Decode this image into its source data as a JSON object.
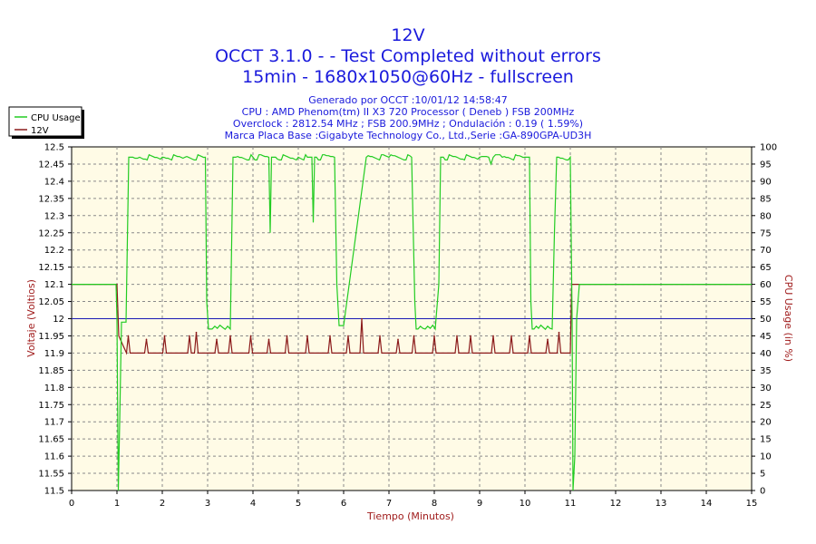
{
  "chart_data": {
    "type": "line",
    "title": "12V",
    "subtitle_1": "OCCT 3.1.0 -  - Test Completed without errors",
    "subtitle_2": "15min - 1680x1050@60Hz - fullscreen",
    "info_lines": [
      "Generado por OCCT :10/01/12 14:58:47",
      "CPU : AMD Phenom(tm) II X3 720 Processor ( Deneb ) FSB 200MHz",
      "Overclock : 2812.54 MHz ; FSB 200.9MHz ; Ondulación : 0.19 ( 1.59%)",
      "Marca Placa Base :Gigabyte Technology Co., Ltd.,Serie :GA-890GPA-UD3H"
    ],
    "xlabel": "Tiempo (Minutos)",
    "ylabel_left": "Voltaje (Voltios)",
    "ylabel_right": "CPU Usage (in %)",
    "xlim": [
      0,
      15
    ],
    "ylim_left": [
      11.5,
      12.5
    ],
    "ylim_right": [
      0,
      100
    ],
    "x_ticks": [
      "0",
      "1",
      "2",
      "3",
      "4",
      "5",
      "6",
      "7",
      "8",
      "9",
      "10",
      "11",
      "12",
      "13",
      "14",
      "15"
    ],
    "y_left_ticks": [
      "11.5",
      "11.55",
      "11.6",
      "11.65",
      "11.7",
      "11.75",
      "11.8",
      "11.85",
      "11.9",
      "11.95",
      "12",
      "12.05",
      "12.1",
      "12.15",
      "12.2",
      "12.25",
      "12.3",
      "12.35",
      "12.4",
      "12.45",
      "12.5"
    ],
    "y_right_ticks": [
      "0",
      "5",
      "10",
      "15",
      "20",
      "25",
      "30",
      "35",
      "40",
      "45",
      "50",
      "55",
      "60",
      "65",
      "70",
      "75",
      "80",
      "85",
      "90",
      "95",
      "100"
    ],
    "grid": true,
    "reference_line": 12.0,
    "legend": {
      "position": "top-left",
      "entries": [
        "CPU Usage",
        "12V"
      ]
    },
    "colors": {
      "cpu": "#22cc22",
      "voltage": "#8b1a1a",
      "reference": "#1a1ab4",
      "plot_bg": "#fffbe6",
      "axis_title": "#a01c1c"
    },
    "series": [
      {
        "name": "CPU Usage",
        "axis": "right",
        "x": [
          0,
          0.98,
          1.0,
          1.03,
          1.06,
          1.1,
          1.2,
          1.26,
          1.35,
          1.5,
          2.0,
          2.5,
          2.95,
          2.98,
          3.02,
          3.1,
          3.5,
          3.56,
          3.62,
          4.0,
          4.35,
          4.38,
          4.41,
          4.44,
          4.5,
          5.0,
          5.2,
          5.3,
          5.33,
          5.36,
          5.4,
          5.8,
          5.85,
          5.9,
          6.0,
          6.5,
          7.0,
          7.5,
          7.57,
          7.6,
          7.64,
          7.8,
          8.02,
          8.1,
          8.14,
          8.2,
          8.5,
          9.0,
          9.2,
          9.25,
          9.3,
          9.5,
          10.0,
          10.1,
          10.13,
          10.16,
          10.2,
          10.6,
          10.65,
          10.7,
          10.74,
          11.0,
          11.04,
          11.06,
          11.1,
          11.14,
          11.2,
          12,
          13,
          14,
          15
        ],
        "values": [
          60,
          60,
          50,
          0,
          20,
          49,
          49,
          97,
          97,
          97,
          97,
          97,
          97,
          55,
          47,
          47,
          47,
          97,
          97,
          97,
          97,
          75,
          97,
          97,
          97,
          97,
          97,
          97,
          78,
          97,
          97,
          97,
          60,
          48,
          48,
          97,
          97,
          97,
          55,
          47,
          47,
          47,
          47,
          60,
          97,
          97,
          97,
          97,
          97,
          95,
          97,
          97,
          97,
          97,
          55,
          47,
          47,
          47,
          75,
          97,
          97,
          97,
          50,
          0,
          10,
          50,
          60,
          60,
          60,
          60,
          60
        ]
      },
      {
        "name": "12V",
        "axis": "left",
        "x": [
          0,
          1.0,
          1.04,
          1.1,
          1.2,
          1.3,
          1.6,
          1.9,
          2.3,
          2.6,
          3.0,
          3.3,
          3.7,
          4.0,
          4.2,
          4.6,
          5.0,
          5.3,
          5.7,
          6.0,
          6.4,
          6.8,
          7.1,
          7.5,
          7.9,
          8.3,
          8.6,
          9.0,
          9.4,
          9.7,
          10.0,
          10.3,
          10.7,
          10.95,
          11.0,
          11.03,
          12,
          13,
          14,
          15
        ],
        "values": [
          12.1,
          12.1,
          11.95,
          11.9,
          11.9,
          11.9,
          11.9,
          11.9,
          11.9,
          11.9,
          11.9,
          11.9,
          11.9,
          11.9,
          11.9,
          11.9,
          11.9,
          11.9,
          11.9,
          11.9,
          11.9,
          11.9,
          11.9,
          11.9,
          11.9,
          11.9,
          11.9,
          11.9,
          11.9,
          11.9,
          11.9,
          11.9,
          11.9,
          11.9,
          11.9,
          12.1,
          12.1,
          12.1,
          12.1,
          12.1
        ],
        "spikes_x": [
          1.25,
          1.65,
          2.05,
          2.6,
          2.75,
          3.2,
          3.5,
          3.95,
          4.35,
          4.75,
          5.2,
          5.7,
          6.1,
          6.4,
          6.8,
          7.2,
          7.55,
          8.0,
          8.5,
          8.8,
          9.3,
          9.7,
          10.1,
          10.5,
          10.75
        ],
        "spikes_values": [
          11.95,
          11.94,
          11.95,
          11.95,
          11.96,
          11.94,
          11.95,
          11.95,
          11.94,
          11.95,
          11.95,
          11.95,
          11.95,
          12.0,
          11.95,
          11.94,
          11.95,
          11.95,
          11.95,
          11.95,
          11.95,
          11.95,
          11.95,
          11.94,
          11.96
        ]
      }
    ]
  }
}
